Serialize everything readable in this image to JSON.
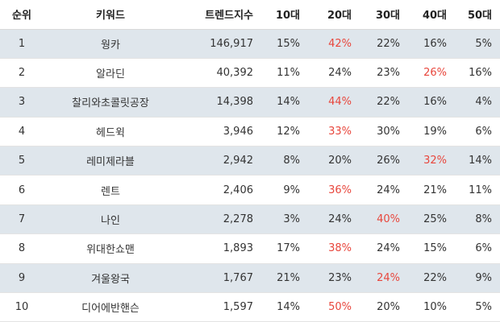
{
  "table": {
    "columns": [
      "순위",
      "키워드",
      "트렌드지수",
      "10대",
      "20대",
      "30대",
      "40대",
      "50대"
    ],
    "rows": [
      {
        "rank": "1",
        "keyword": "웡카",
        "trend": "146,917",
        "t10": "15%",
        "t20": "42%",
        "t30": "22%",
        "t40": "16%",
        "t50": "5%",
        "highlight": "t20"
      },
      {
        "rank": "2",
        "keyword": "알라딘",
        "trend": "40,392",
        "t10": "11%",
        "t20": "24%",
        "t30": "23%",
        "t40": "26%",
        "t50": "16%",
        "highlight": "t40"
      },
      {
        "rank": "3",
        "keyword": "찰리와초콜릿공장",
        "trend": "14,398",
        "t10": "14%",
        "t20": "44%",
        "t30": "22%",
        "t40": "16%",
        "t50": "4%",
        "highlight": "t20"
      },
      {
        "rank": "4",
        "keyword": "헤드윅",
        "trend": "3,946",
        "t10": "12%",
        "t20": "33%",
        "t30": "30%",
        "t40": "19%",
        "t50": "6%",
        "highlight": "t20"
      },
      {
        "rank": "5",
        "keyword": "레미제라블",
        "trend": "2,942",
        "t10": "8%",
        "t20": "20%",
        "t30": "26%",
        "t40": "32%",
        "t50": "14%",
        "highlight": "t40"
      },
      {
        "rank": "6",
        "keyword": "렌트",
        "trend": "2,406",
        "t10": "9%",
        "t20": "36%",
        "t30": "24%",
        "t40": "21%",
        "t50": "11%",
        "highlight": "t20"
      },
      {
        "rank": "7",
        "keyword": "나인",
        "trend": "2,278",
        "t10": "3%",
        "t20": "24%",
        "t30": "40%",
        "t40": "25%",
        "t50": "8%",
        "highlight": "t30"
      },
      {
        "rank": "8",
        "keyword": "위대한쇼맨",
        "trend": "1,893",
        "t10": "17%",
        "t20": "38%",
        "t30": "24%",
        "t40": "15%",
        "t50": "6%",
        "highlight": "t20"
      },
      {
        "rank": "9",
        "keyword": "겨울왕국",
        "trend": "1,767",
        "t10": "21%",
        "t20": "23%",
        "t30": "24%",
        "t40": "22%",
        "t50": "9%",
        "highlight": "t30"
      },
      {
        "rank": "10",
        "keyword": "디어에반핸슨",
        "trend": "1,597",
        "t10": "14%",
        "t20": "50%",
        "t30": "20%",
        "t40": "10%",
        "t50": "5%",
        "highlight": "t20"
      }
    ]
  },
  "colors": {
    "highlight": "#e8473d",
    "alt_row": "#dfe6ec"
  }
}
